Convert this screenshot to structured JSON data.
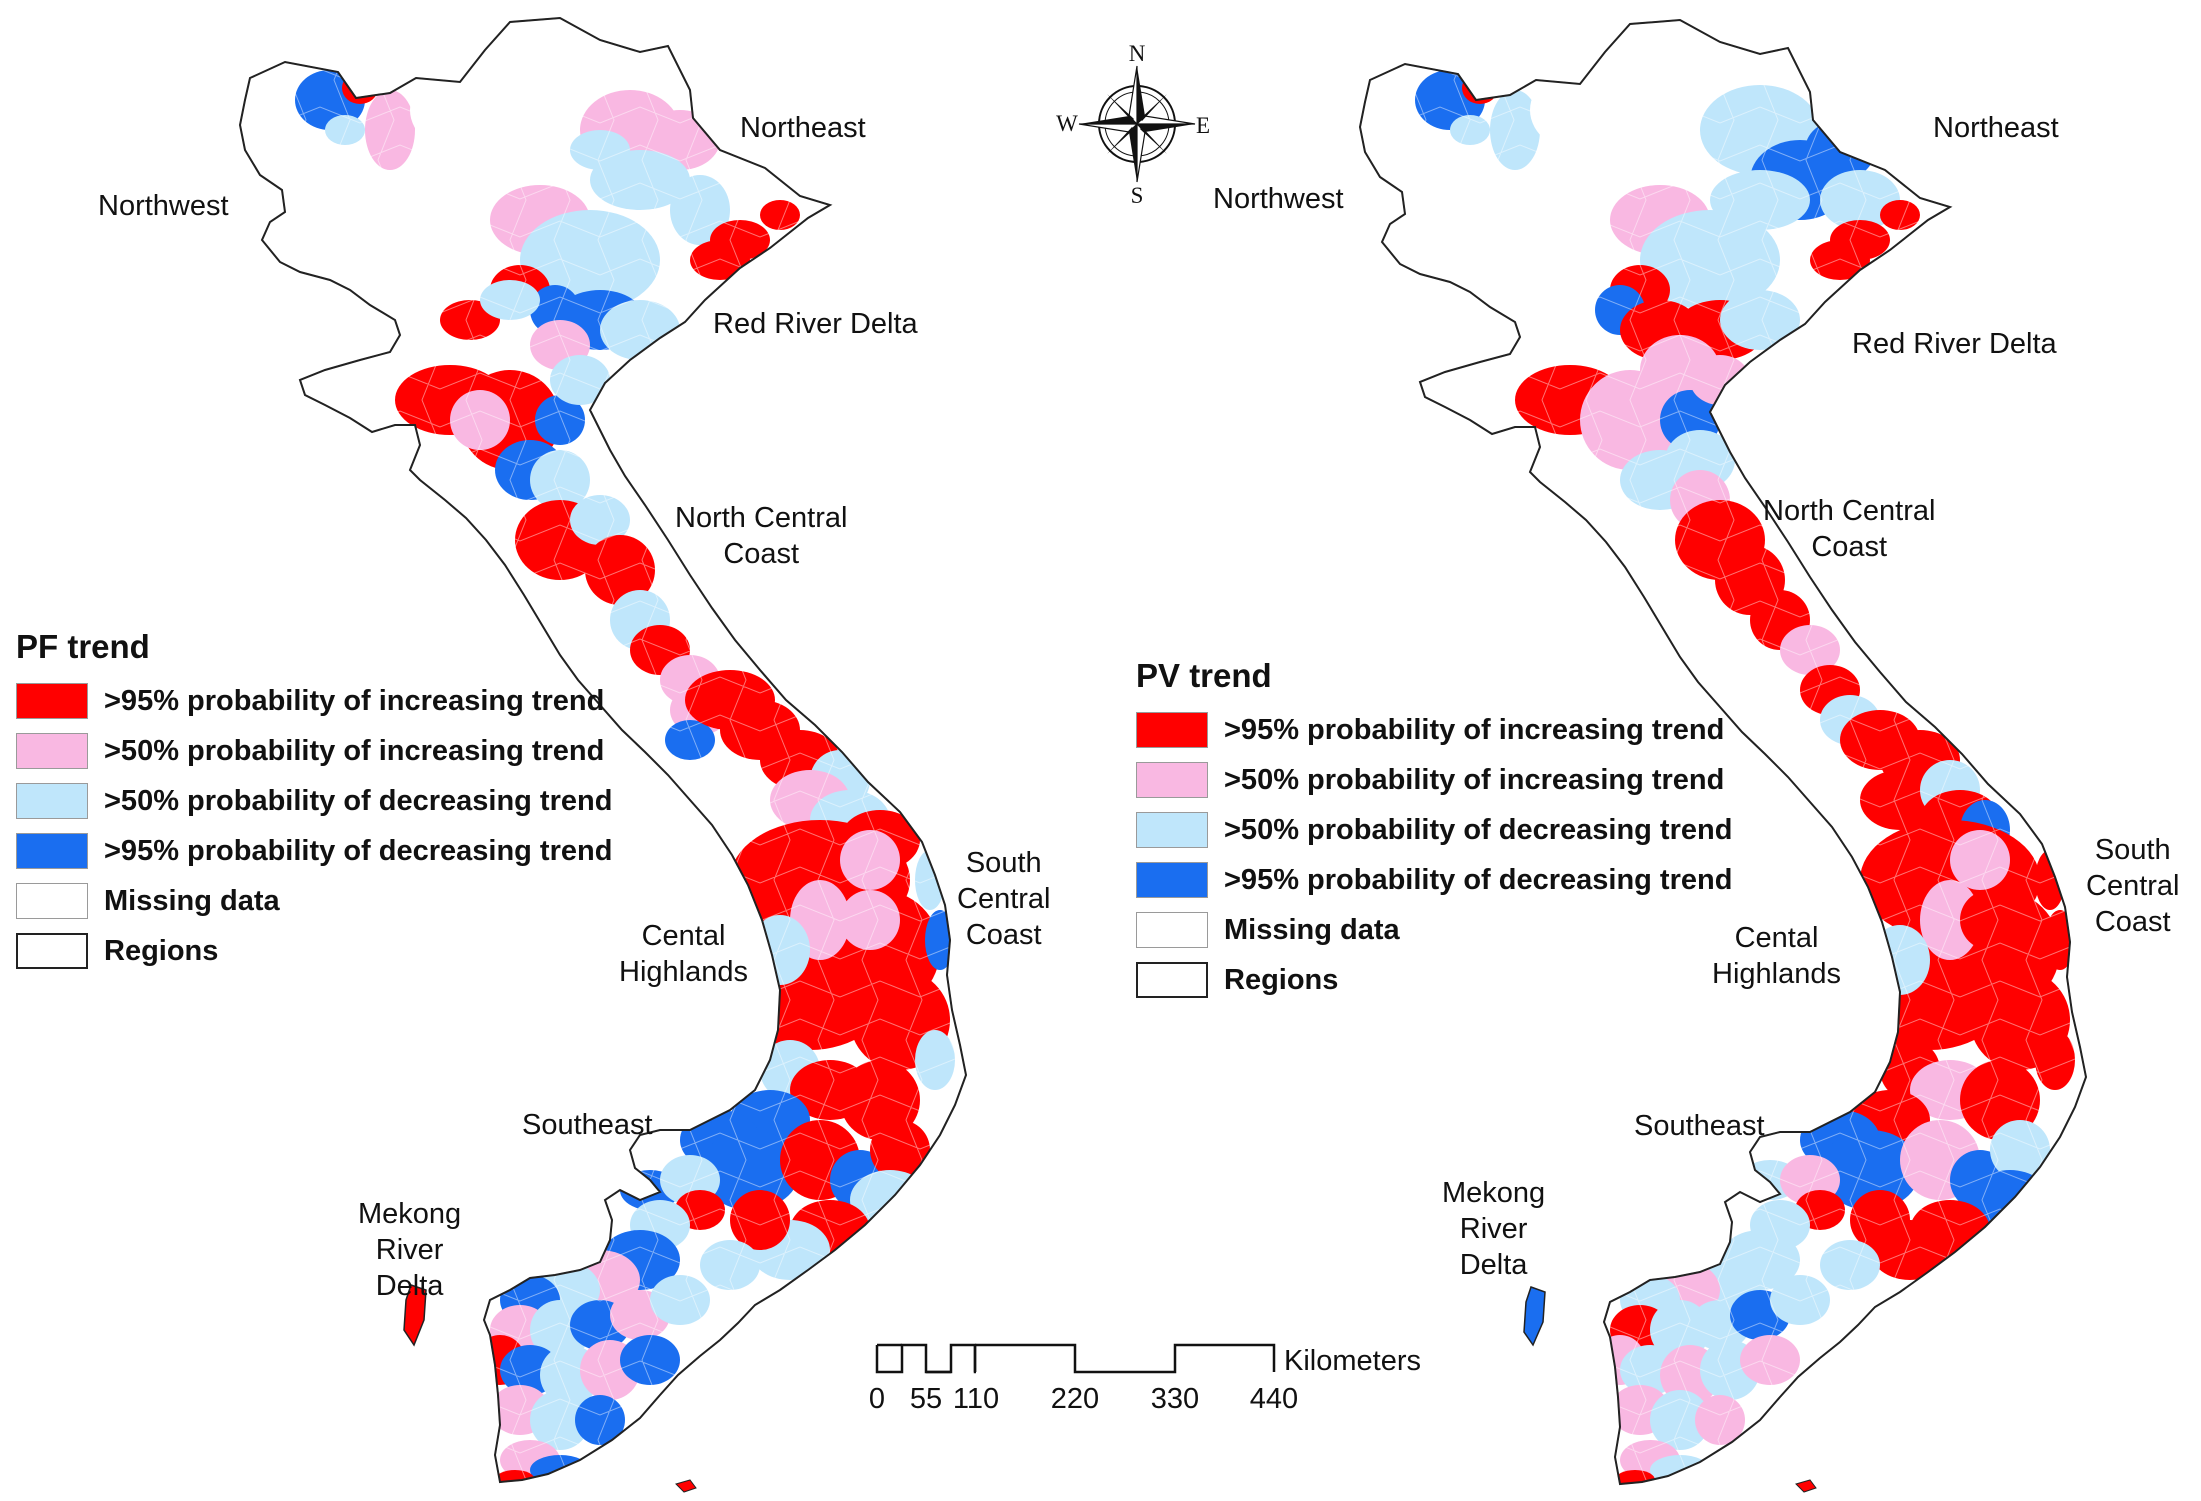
{
  "colors": {
    "inc95": "#ff0000",
    "inc50": "#f9b8e2",
    "dec50": "#bfe6fb",
    "dec95": "#1a6ef0",
    "missing": "#ffffff",
    "border": "#7f7f7f"
  },
  "maps": {
    "pf": {
      "legend": {
        "title": "PF trend",
        "items": [
          {
            "label": ">95% probability of increasing trend",
            "color_key": "inc95"
          },
          {
            "label": ">50% probability of increasing trend",
            "color_key": "inc50"
          },
          {
            "label": ">50% probability of decreasing trend",
            "color_key": "dec50"
          },
          {
            "label": ">95% probability of decreasing trend",
            "color_key": "dec95"
          },
          {
            "label": "Missing data",
            "color_key": "missing"
          },
          {
            "label": "Regions",
            "color_key": "regions"
          }
        ]
      },
      "regions": {
        "northwest": "Northwest",
        "northeast": "Northeast",
        "red_river_delta": "Red River Delta",
        "north_central_coast": "North Central\nCoast",
        "south_central_coast": "South\nCentral\nCoast",
        "central_highlands": "Cental\nHighlands",
        "southeast": "Southeast",
        "mekong_river_delta": "Mekong\nRiver\nDelta"
      }
    },
    "pv": {
      "legend": {
        "title": "PV trend",
        "items": [
          {
            "label": ">95% probability of increasing trend",
            "color_key": "inc95"
          },
          {
            "label": ">50% probability of increasing trend",
            "color_key": "inc50"
          },
          {
            "label": ">50% probability of decreasing trend",
            "color_key": "dec50"
          },
          {
            "label": ">95% probability of decreasing trend",
            "color_key": "dec95"
          },
          {
            "label": "Missing data",
            "color_key": "missing"
          },
          {
            "label": "Regions",
            "color_key": "regions"
          }
        ]
      },
      "regions": {
        "northwest": "Northwest",
        "northeast": "Northeast",
        "red_river_delta": "Red River Delta",
        "north_central_coast": "North Central\nCoast",
        "south_central_coast": "South\nCentral\nCoast",
        "central_highlands": "Cental\nHighlands",
        "southeast": "Southeast",
        "mekong_river_delta": "Mekong\nRiver\nDelta"
      }
    }
  },
  "compass": {
    "n": "N",
    "s": "S",
    "e": "E",
    "w": "W"
  },
  "scale_bar": {
    "ticks": [
      "0",
      "55",
      "110",
      "220",
      "330",
      "440"
    ],
    "unit": "Kilometers"
  }
}
